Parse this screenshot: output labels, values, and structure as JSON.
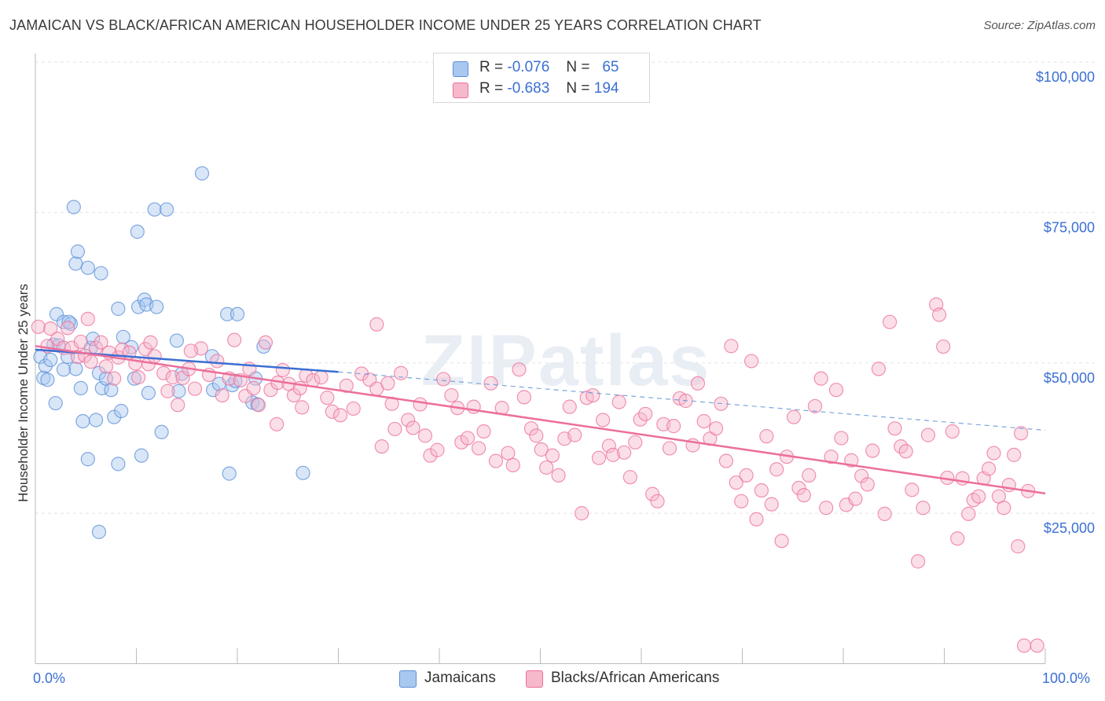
{
  "title": "JAMAICAN VS BLACK/AFRICAN AMERICAN HOUSEHOLDER INCOME UNDER 25 YEARS CORRELATION CHART",
  "source": "Source: ZipAtlas.com",
  "watermark": "ZIPatlas",
  "legend": {
    "r_label": "R =",
    "n_label": "N =",
    "rows": [
      {
        "r": "-0.076",
        "n": "65",
        "color": "#a9c8ef"
      },
      {
        "r": "-0.683",
        "n": "194",
        "color": "#f6b9cb"
      }
    ]
  },
  "bottom_legend": [
    {
      "label": "Jamaicans",
      "color": "#a9c8ef"
    },
    {
      "label": "Blacks/African Americans",
      "color": "#f6b9cb"
    }
  ],
  "colors": {
    "blue": "#5b8fd8",
    "pink": "#ec6f9a",
    "axis_label": "#3b6fd4",
    "grid": "#e3e3e3"
  },
  "chart_data": {
    "type": "scatter",
    "title": "JAMAICAN VS BLACK/AFRICAN AMERICAN HOUSEHOLDER INCOME UNDER 25 YEARS CORRELATION CHART",
    "xlabel": "",
    "ylabel": "Householder Income Under 25 years",
    "xlim": [
      0,
      100
    ],
    "ylim": [
      0,
      105000
    ],
    "x_tick_labels": [
      {
        "v": 0,
        "label": "0.0%"
      },
      {
        "v": 100,
        "label": "100.0%"
      }
    ],
    "y_ticks": [
      {
        "v": 25000,
        "label": "$25,000"
      },
      {
        "v": 50000,
        "label": "$50,000"
      },
      {
        "v": 75000,
        "label": "$75,000"
      },
      {
        "v": 100000,
        "label": "$100,000"
      }
    ],
    "grid": true,
    "series": [
      {
        "name": "Jamaicans",
        "color": "#5b8fd8",
        "fill": "#a9c8ef",
        "trend": {
          "x0": 0,
          "y0": 52200,
          "x1": 30,
          "y1": 48500,
          "dash_to_x": 100,
          "dash_to_y": 38800
        },
        "points": [
          [
            0.5,
            51000
          ],
          [
            0.8,
            47500
          ],
          [
            1,
            49500
          ],
          [
            1.2,
            47200
          ],
          [
            1.5,
            50500
          ],
          [
            1.8,
            53000
          ],
          [
            2,
            43300
          ],
          [
            2.1,
            58100
          ],
          [
            2.3,
            52900
          ],
          [
            2.8,
            56800
          ],
          [
            3.2,
            51000
          ],
          [
            3.5,
            56500
          ],
          [
            3.8,
            75900
          ],
          [
            4,
            66500
          ],
          [
            4.2,
            68500
          ],
          [
            4,
            49000
          ],
          [
            4.5,
            45800
          ],
          [
            4.7,
            40300
          ],
          [
            5.2,
            65800
          ],
          [
            5.2,
            34000
          ],
          [
            5.5,
            52500
          ],
          [
            5.7,
            54000
          ],
          [
            6,
            40500
          ],
          [
            6.3,
            48300
          ],
          [
            6.5,
            64900
          ],
          [
            6.6,
            45800
          ],
          [
            7,
            47400
          ],
          [
            7.5,
            45500
          ],
          [
            7.8,
            41000
          ],
          [
            8.2,
            59000
          ],
          [
            8.2,
            33200
          ],
          [
            8.5,
            42000
          ],
          [
            8.7,
            54300
          ],
          [
            9.5,
            52600
          ],
          [
            9.8,
            47400
          ],
          [
            10.1,
            71800
          ],
          [
            10.2,
            59300
          ],
          [
            10.5,
            34600
          ],
          [
            10.8,
            60500
          ],
          [
            11,
            59700
          ],
          [
            11.2,
            45000
          ],
          [
            11.8,
            75500
          ],
          [
            12,
            59300
          ],
          [
            12.5,
            38500
          ],
          [
            13,
            75500
          ],
          [
            14,
            53700
          ],
          [
            14.2,
            45300
          ],
          [
            14.5,
            48200
          ],
          [
            16.5,
            81500
          ],
          [
            17.5,
            51100
          ],
          [
            17.6,
            45500
          ],
          [
            18.2,
            46500
          ],
          [
            19,
            58100
          ],
          [
            19.2,
            31600
          ],
          [
            19.5,
            46300
          ],
          [
            19.8,
            47000
          ],
          [
            20,
            58100
          ],
          [
            21.5,
            43400
          ],
          [
            22,
            43100
          ],
          [
            21.8,
            47400
          ],
          [
            22.6,
            52700
          ],
          [
            26.5,
            31700
          ],
          [
            6.3,
            21900
          ],
          [
            3.3,
            56800
          ],
          [
            2.8,
            48900
          ]
        ]
      },
      {
        "name": "Blacks/African Americans",
        "color": "#ec6f9a",
        "fill": "#f6b9cb",
        "trend": {
          "x0": 0,
          "y0": 52800,
          "x1": 100,
          "y1": 28300
        },
        "points": [
          [
            0.3,
            56000
          ],
          [
            1.2,
            52800
          ],
          [
            1.5,
            55700
          ],
          [
            2.2,
            54000
          ],
          [
            2.8,
            52500
          ],
          [
            3.2,
            55800
          ],
          [
            3.6,
            52500
          ],
          [
            4.2,
            51000
          ],
          [
            4.5,
            53500
          ],
          [
            4.9,
            51200
          ],
          [
            5.2,
            57300
          ],
          [
            5.5,
            50200
          ],
          [
            6,
            52500
          ],
          [
            6.5,
            53400
          ],
          [
            7,
            49400
          ],
          [
            7.3,
            51700
          ],
          [
            7.8,
            47400
          ],
          [
            8.2,
            50900
          ],
          [
            8.6,
            52200
          ],
          [
            9.3,
            51700
          ],
          [
            9.9,
            49900
          ],
          [
            10.2,
            47600
          ],
          [
            10.9,
            52300
          ],
          [
            11.2,
            49800
          ],
          [
            11.4,
            53400
          ],
          [
            11.8,
            51100
          ],
          [
            12.7,
            48300
          ],
          [
            13.6,
            47600
          ],
          [
            14.1,
            43000
          ],
          [
            14.6,
            47500
          ],
          [
            15.2,
            49000
          ],
          [
            15.8,
            45700
          ],
          [
            16.4,
            52400
          ],
          [
            17.2,
            48000
          ],
          [
            18,
            50300
          ],
          [
            18.5,
            44600
          ],
          [
            19.2,
            47400
          ],
          [
            19.7,
            53800
          ],
          [
            20.3,
            47100
          ],
          [
            20.8,
            44500
          ],
          [
            21.2,
            49000
          ],
          [
            21.6,
            45800
          ],
          [
            22.1,
            43000
          ],
          [
            22.8,
            53400
          ],
          [
            23.3,
            45500
          ],
          [
            24,
            46700
          ],
          [
            24.5,
            48800
          ],
          [
            25.1,
            46500
          ],
          [
            25.6,
            44600
          ],
          [
            26.2,
            45800
          ],
          [
            26.8,
            47900
          ],
          [
            27.5,
            47100
          ],
          [
            28.3,
            47600
          ],
          [
            28.9,
            44200
          ],
          [
            29.4,
            41900
          ],
          [
            30.2,
            41300
          ],
          [
            30.8,
            46200
          ],
          [
            31.5,
            42400
          ],
          [
            32.3,
            48200
          ],
          [
            33.1,
            47200
          ],
          [
            33.8,
            45700
          ],
          [
            34.3,
            36100
          ],
          [
            34.9,
            46600
          ],
          [
            35.3,
            43200
          ],
          [
            36.2,
            48300
          ],
          [
            36.9,
            40500
          ],
          [
            37.4,
            39200
          ],
          [
            38.1,
            43100
          ],
          [
            38.6,
            37900
          ],
          [
            39.1,
            34600
          ],
          [
            39.8,
            35500
          ],
          [
            40.4,
            47300
          ],
          [
            41.2,
            44600
          ],
          [
            41.8,
            42500
          ],
          [
            42.2,
            36800
          ],
          [
            42.8,
            37500
          ],
          [
            43.4,
            42700
          ],
          [
            43.9,
            35800
          ],
          [
            44.4,
            38600
          ],
          [
            45.1,
            46600
          ],
          [
            45.6,
            33700
          ],
          [
            46.2,
            42500
          ],
          [
            46.8,
            35000
          ],
          [
            47.3,
            33000
          ],
          [
            47.9,
            48900
          ],
          [
            48.4,
            44300
          ],
          [
            49.1,
            39100
          ],
          [
            49.6,
            37900
          ],
          [
            50.1,
            35600
          ],
          [
            50.6,
            32600
          ],
          [
            51.2,
            34600
          ],
          [
            51.8,
            31300
          ],
          [
            52.4,
            37400
          ],
          [
            52.9,
            42700
          ],
          [
            53.4,
            38000
          ],
          [
            54.1,
            25000
          ],
          [
            54.6,
            44200
          ],
          [
            55.2,
            44600
          ],
          [
            55.8,
            34200
          ],
          [
            56.2,
            40500
          ],
          [
            56.8,
            36200
          ],
          [
            57.2,
            34700
          ],
          [
            57.8,
            43500
          ],
          [
            58.3,
            35100
          ],
          [
            58.9,
            31000
          ],
          [
            59.4,
            36800
          ],
          [
            59.9,
            40600
          ],
          [
            60.4,
            41500
          ],
          [
            61.1,
            28200
          ],
          [
            61.6,
            27000
          ],
          [
            62.2,
            39800
          ],
          [
            62.8,
            35800
          ],
          [
            63.2,
            39500
          ],
          [
            63.8,
            44100
          ],
          [
            64.4,
            43700
          ],
          [
            65.1,
            36300
          ],
          [
            65.6,
            46600
          ],
          [
            66.2,
            40300
          ],
          [
            66.8,
            37400
          ],
          [
            67.4,
            39100
          ],
          [
            67.9,
            43200
          ],
          [
            68.4,
            33700
          ],
          [
            68.9,
            52800
          ],
          [
            69.4,
            30100
          ],
          [
            69.9,
            27000
          ],
          [
            70.4,
            31300
          ],
          [
            70.9,
            50300
          ],
          [
            71.4,
            24000
          ],
          [
            71.9,
            28800
          ],
          [
            72.4,
            37800
          ],
          [
            72.9,
            26500
          ],
          [
            73.4,
            32300
          ],
          [
            73.9,
            20400
          ],
          [
            74.4,
            34400
          ],
          [
            75.1,
            41000
          ],
          [
            75.6,
            29200
          ],
          [
            76.1,
            28000
          ],
          [
            76.6,
            31300
          ],
          [
            77.2,
            42800
          ],
          [
            77.8,
            47400
          ],
          [
            78.3,
            25900
          ],
          [
            78.8,
            34400
          ],
          [
            79.3,
            45500
          ],
          [
            79.8,
            37500
          ],
          [
            80.3,
            26400
          ],
          [
            80.8,
            33800
          ],
          [
            81.2,
            27400
          ],
          [
            81.8,
            31200
          ],
          [
            82.4,
            29800
          ],
          [
            82.9,
            35400
          ],
          [
            83.5,
            49000
          ],
          [
            84.1,
            24900
          ],
          [
            84.6,
            56800
          ],
          [
            85.1,
            39100
          ],
          [
            85.7,
            36100
          ],
          [
            86.2,
            35300
          ],
          [
            86.8,
            28900
          ],
          [
            87.4,
            17000
          ],
          [
            87.9,
            25900
          ],
          [
            88.4,
            38000
          ],
          [
            89.2,
            59700
          ],
          [
            89.5,
            58000
          ],
          [
            89.9,
            52700
          ],
          [
            90.3,
            30900
          ],
          [
            90.8,
            38600
          ],
          [
            91.3,
            20800
          ],
          [
            91.8,
            30800
          ],
          [
            92.4,
            24900
          ],
          [
            92.9,
            27200
          ],
          [
            93.4,
            27800
          ],
          [
            93.9,
            30800
          ],
          [
            94.4,
            32400
          ],
          [
            94.9,
            35000
          ],
          [
            95.4,
            27800
          ],
          [
            95.9,
            25900
          ],
          [
            96.4,
            29700
          ],
          [
            96.9,
            34700
          ],
          [
            97.3,
            19500
          ],
          [
            97.6,
            38300
          ],
          [
            98.3,
            28700
          ],
          [
            99.2,
            3000
          ],
          [
            97.9,
            3000
          ],
          [
            33.8,
            56400
          ],
          [
            35.6,
            39000
          ],
          [
            26.4,
            42600
          ],
          [
            23.9,
            39800
          ],
          [
            13.1,
            45300
          ],
          [
            15.4,
            52000
          ]
        ]
      }
    ]
  }
}
